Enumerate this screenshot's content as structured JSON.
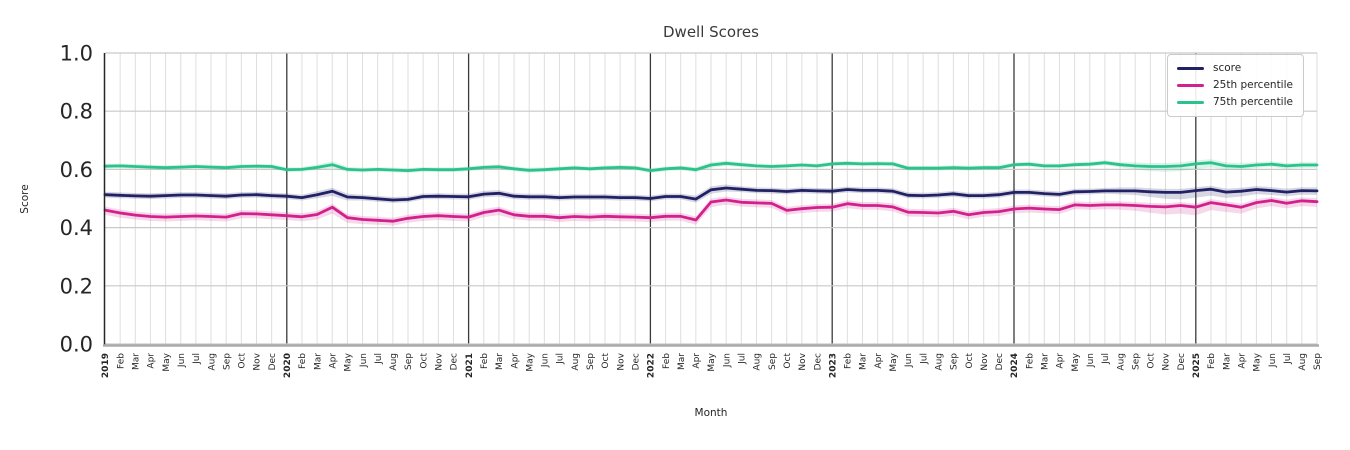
{
  "chart_data": {
    "type": "line",
    "title": "Dwell Scores",
    "xlabel": "Month",
    "ylabel": "Score",
    "ylim": [
      0.0,
      1.0
    ],
    "yticks": [
      0.0,
      0.2,
      0.4,
      0.6,
      0.8,
      1.0
    ],
    "grid": true,
    "legend_position": "upper right",
    "x_labels": [
      "2019",
      "Feb",
      "Mar",
      "Apr",
      "May",
      "Jun",
      "Jul",
      "Aug",
      "Sep",
      "Oct",
      "Nov",
      "Dec",
      "2020",
      "Feb",
      "Mar",
      "Apr",
      "May",
      "Jun",
      "Jul",
      "Aug",
      "Sep",
      "Oct",
      "Nov",
      "Dec",
      "2021",
      "Feb",
      "Mar",
      "Apr",
      "May",
      "Jun",
      "Jul",
      "Aug",
      "Sep",
      "Oct",
      "Nov",
      "Dec",
      "2022",
      "Feb",
      "Mar",
      "Apr",
      "May",
      "Jun",
      "Jul",
      "Aug",
      "Sep",
      "Oct",
      "Nov",
      "Dec",
      "2023",
      "Feb",
      "Mar",
      "Apr",
      "May",
      "Jun",
      "Jul",
      "Aug",
      "Sep",
      "Oct",
      "Nov",
      "Dec",
      "2024",
      "Feb",
      "Mar",
      "Apr",
      "May",
      "Jun",
      "Jul",
      "Aug",
      "Sep",
      "Oct",
      "Nov",
      "Dec",
      "2025",
      "Feb",
      "Mar",
      "Apr",
      "May",
      "Jun",
      "Jul",
      "Aug",
      "Sep"
    ],
    "series": [
      {
        "name": "score",
        "color": "#222166",
        "values": [
          0.513,
          0.511,
          0.509,
          0.508,
          0.51,
          0.512,
          0.512,
          0.51,
          0.508,
          0.512,
          0.513,
          0.51,
          0.508,
          0.503,
          0.513,
          0.525,
          0.505,
          0.503,
          0.499,
          0.495,
          0.497,
          0.507,
          0.508,
          0.507,
          0.506,
          0.515,
          0.518,
          0.508,
          0.506,
          0.506,
          0.503,
          0.505,
          0.505,
          0.505,
          0.503,
          0.503,
          0.5,
          0.507,
          0.507,
          0.498,
          0.53,
          0.536,
          0.532,
          0.528,
          0.527,
          0.524,
          0.528,
          0.526,
          0.525,
          0.531,
          0.528,
          0.528,
          0.525,
          0.511,
          0.51,
          0.512,
          0.516,
          0.51,
          0.51,
          0.513,
          0.521,
          0.521,
          0.517,
          0.514,
          0.523,
          0.524,
          0.526,
          0.526,
          0.526,
          0.523,
          0.521,
          0.521,
          0.527,
          0.532,
          0.522,
          0.525,
          0.531,
          0.527,
          0.522,
          0.527,
          0.526
        ],
        "band_halfwidth": [
          0.01,
          0.01,
          0.01,
          0.01,
          0.01,
          0.01,
          0.01,
          0.01,
          0.01,
          0.01,
          0.01,
          0.01,
          0.01,
          0.01,
          0.012,
          0.016,
          0.012,
          0.01,
          0.01,
          0.01,
          0.01,
          0.01,
          0.01,
          0.01,
          0.01,
          0.011,
          0.011,
          0.01,
          0.01,
          0.01,
          0.01,
          0.01,
          0.01,
          0.01,
          0.01,
          0.01,
          0.01,
          0.01,
          0.01,
          0.012,
          0.014,
          0.012,
          0.01,
          0.01,
          0.01,
          0.01,
          0.01,
          0.01,
          0.01,
          0.01,
          0.01,
          0.01,
          0.01,
          0.01,
          0.01,
          0.01,
          0.01,
          0.01,
          0.01,
          0.01,
          0.01,
          0.01,
          0.01,
          0.01,
          0.01,
          0.01,
          0.01,
          0.012,
          0.014,
          0.018,
          0.022,
          0.024,
          0.024,
          0.022,
          0.02,
          0.018,
          0.016,
          0.015,
          0.014,
          0.014,
          0.014
        ]
      },
      {
        "name": "25th percentile",
        "color": "#d2208c",
        "values": [
          0.46,
          0.45,
          0.443,
          0.438,
          0.436,
          0.438,
          0.44,
          0.438,
          0.436,
          0.448,
          0.447,
          0.444,
          0.441,
          0.437,
          0.445,
          0.47,
          0.434,
          0.428,
          0.425,
          0.422,
          0.432,
          0.438,
          0.441,
          0.438,
          0.436,
          0.452,
          0.46,
          0.444,
          0.439,
          0.439,
          0.434,
          0.438,
          0.436,
          0.439,
          0.437,
          0.436,
          0.434,
          0.439,
          0.439,
          0.426,
          0.488,
          0.495,
          0.487,
          0.485,
          0.483,
          0.459,
          0.465,
          0.469,
          0.47,
          0.482,
          0.476,
          0.476,
          0.471,
          0.453,
          0.452,
          0.45,
          0.456,
          0.444,
          0.452,
          0.455,
          0.464,
          0.467,
          0.464,
          0.462,
          0.478,
          0.476,
          0.478,
          0.478,
          0.476,
          0.473,
          0.471,
          0.476,
          0.47,
          0.486,
          0.478,
          0.47,
          0.486,
          0.493,
          0.484,
          0.492,
          0.489
        ],
        "band_halfwidth": [
          0.016,
          0.016,
          0.015,
          0.015,
          0.015,
          0.015,
          0.015,
          0.015,
          0.015,
          0.016,
          0.015,
          0.015,
          0.015,
          0.015,
          0.017,
          0.022,
          0.018,
          0.016,
          0.015,
          0.015,
          0.015,
          0.015,
          0.015,
          0.015,
          0.015,
          0.016,
          0.017,
          0.015,
          0.015,
          0.015,
          0.015,
          0.015,
          0.015,
          0.015,
          0.015,
          0.015,
          0.015,
          0.015,
          0.015,
          0.016,
          0.018,
          0.016,
          0.015,
          0.015,
          0.015,
          0.015,
          0.015,
          0.015,
          0.015,
          0.015,
          0.015,
          0.015,
          0.015,
          0.015,
          0.015,
          0.015,
          0.015,
          0.015,
          0.015,
          0.015,
          0.015,
          0.015,
          0.015,
          0.015,
          0.015,
          0.015,
          0.015,
          0.016,
          0.018,
          0.022,
          0.026,
          0.028,
          0.028,
          0.026,
          0.024,
          0.022,
          0.02,
          0.019,
          0.018,
          0.018,
          0.018
        ]
      },
      {
        "name": "75th percentile",
        "color": "#2cc28c",
        "values": [
          0.611,
          0.612,
          0.61,
          0.608,
          0.606,
          0.608,
          0.61,
          0.608,
          0.606,
          0.61,
          0.611,
          0.61,
          0.599,
          0.6,
          0.607,
          0.616,
          0.6,
          0.598,
          0.6,
          0.598,
          0.596,
          0.6,
          0.599,
          0.599,
          0.602,
          0.607,
          0.609,
          0.602,
          0.597,
          0.599,
          0.602,
          0.605,
          0.602,
          0.605,
          0.607,
          0.605,
          0.596,
          0.602,
          0.605,
          0.599,
          0.615,
          0.621,
          0.616,
          0.612,
          0.61,
          0.612,
          0.615,
          0.612,
          0.619,
          0.621,
          0.619,
          0.62,
          0.619,
          0.604,
          0.604,
          0.604,
          0.606,
          0.604,
          0.606,
          0.606,
          0.616,
          0.618,
          0.612,
          0.612,
          0.616,
          0.618,
          0.623,
          0.616,
          0.612,
          0.61,
          0.61,
          0.612,
          0.619,
          0.623,
          0.612,
          0.61,
          0.615,
          0.618,
          0.612,
          0.615,
          0.615
        ],
        "band_halfwidth": [
          0.008,
          0.008,
          0.008,
          0.008,
          0.008,
          0.008,
          0.008,
          0.008,
          0.008,
          0.008,
          0.008,
          0.008,
          0.008,
          0.008,
          0.009,
          0.012,
          0.009,
          0.008,
          0.008,
          0.008,
          0.008,
          0.008,
          0.008,
          0.008,
          0.008,
          0.008,
          0.008,
          0.008,
          0.008,
          0.008,
          0.008,
          0.008,
          0.008,
          0.008,
          0.008,
          0.008,
          0.008,
          0.008,
          0.008,
          0.009,
          0.01,
          0.009,
          0.008,
          0.008,
          0.008,
          0.008,
          0.008,
          0.008,
          0.008,
          0.008,
          0.008,
          0.008,
          0.008,
          0.008,
          0.008,
          0.008,
          0.008,
          0.008,
          0.008,
          0.008,
          0.008,
          0.008,
          0.008,
          0.008,
          0.008,
          0.008,
          0.008,
          0.009,
          0.012,
          0.016,
          0.018,
          0.018,
          0.018,
          0.016,
          0.014,
          0.012,
          0.01,
          0.01,
          0.01,
          0.01,
          0.01
        ]
      }
    ],
    "colors": {
      "grid_major_h": "#c9c9c9",
      "grid_minor_v": "#dedede",
      "year_line": "#3a3a3a",
      "left_spine": "#262626",
      "bottom_spine": "#ababab",
      "text": "#262626",
      "title_text": "#3a3a3a"
    }
  }
}
